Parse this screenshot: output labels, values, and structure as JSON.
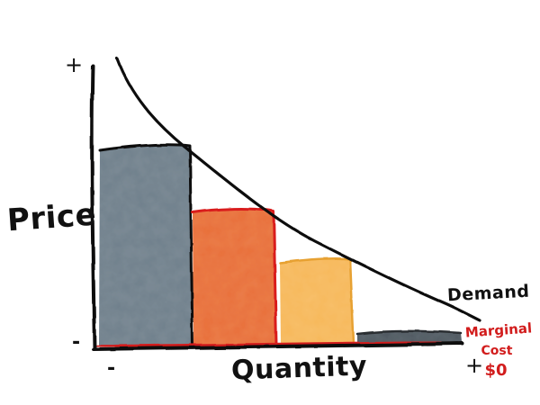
{
  "labels": {
    "y_axis": "Price",
    "x_axis": "Quantity",
    "curve": "Demand",
    "y_axis_top_sign": "+",
    "y_axis_bottom_sign": "-",
    "x_axis_left_sign": "-",
    "x_axis_right_sign": "+",
    "marginal_cost_line1": "Marginal",
    "marginal_cost_line2": "Cost",
    "marginal_cost_line3": "$0"
  },
  "colors": {
    "ink": "#111111",
    "bar_1": "#6f7f8b",
    "bar_2": "#e86f38",
    "bar_3": "#f7b85a",
    "bar_4": "#4e5860",
    "marginal_cost": "#d21d1d"
  },
  "bars": [
    {
      "name": "bar-1",
      "relative_height": 0.82
    },
    {
      "name": "bar-2",
      "relative_height": 0.55
    },
    {
      "name": "bar-3",
      "relative_height": 0.37
    },
    {
      "name": "bar-4",
      "relative_height": 0.04
    }
  ]
}
